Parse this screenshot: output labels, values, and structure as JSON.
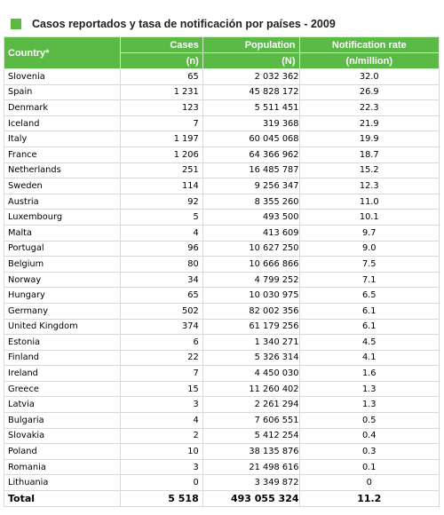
{
  "title": "Casos reportados y tasa de notificación por países - 2009",
  "headers": {
    "country": "Country*",
    "cases": "Cases",
    "cases_unit": "(n)",
    "population": "Population",
    "population_unit": "(N)",
    "rate": "Notification rate",
    "rate_unit": "(n/million)"
  },
  "rows": [
    {
      "country": "Slovenia",
      "cases": "65",
      "population": "2 032 362",
      "rate": "32.0"
    },
    {
      "country": "Spain",
      "cases": "1 231",
      "population": "45 828 172",
      "rate": "26.9"
    },
    {
      "country": "Denmark",
      "cases": "123",
      "population": "5 511 451",
      "rate": "22.3"
    },
    {
      "country": "Iceland",
      "cases": "7",
      "population": "319 368",
      "rate": "21.9"
    },
    {
      "country": "Italy",
      "cases": "1 197",
      "population": "60 045 068",
      "rate": "19.9"
    },
    {
      "country": "France",
      "cases": "1 206",
      "population": "64 366 962",
      "rate": "18.7"
    },
    {
      "country": "Netherlands",
      "cases": "251",
      "population": "16 485 787",
      "rate": "15.2"
    },
    {
      "country": "Sweden",
      "cases": "114",
      "population": "9 256 347",
      "rate": "12.3"
    },
    {
      "country": "Austria",
      "cases": "92",
      "population": "8 355 260",
      "rate": "11.0"
    },
    {
      "country": "Luxembourg",
      "cases": "5",
      "population": "493 500",
      "rate": "10.1"
    },
    {
      "country": "Malta",
      "cases": "4",
      "population": "413 609",
      "rate": "9.7"
    },
    {
      "country": "Portugal",
      "cases": "96",
      "population": "10 627 250",
      "rate": "9.0"
    },
    {
      "country": "Belgium",
      "cases": "80",
      "population": "10 666 866",
      "rate": "7.5"
    },
    {
      "country": "Norway",
      "cases": "34",
      "population": "4 799 252",
      "rate": "7.1"
    },
    {
      "country": "Hungary",
      "cases": "65",
      "population": "10 030 975",
      "rate": "6.5"
    },
    {
      "country": "Germany",
      "cases": "502",
      "population": "82 002 356",
      "rate": "6.1"
    },
    {
      "country": "United Kingdom",
      "cases": "374",
      "population": "61 179 256",
      "rate": "6.1"
    },
    {
      "country": "Estonia",
      "cases": "6",
      "population": "1 340 271",
      "rate": "4.5"
    },
    {
      "country": "Finland",
      "cases": "22",
      "population": "5 326 314",
      "rate": "4.1"
    },
    {
      "country": "Ireland",
      "cases": "7",
      "population": "4 450 030",
      "rate": "1.6"
    },
    {
      "country": "Greece",
      "cases": "15",
      "population": "11 260 402",
      "rate": "1.3"
    },
    {
      "country": "Latvia",
      "cases": "3",
      "population": "2 261 294",
      "rate": "1.3"
    },
    {
      "country": "Bulgaria",
      "cases": "4",
      "population": "7 606 551",
      "rate": "0.5"
    },
    {
      "country": "Slovakia",
      "cases": "2",
      "population": "5 412 254",
      "rate": "0.4"
    },
    {
      "country": "Poland",
      "cases": "10",
      "population": "38 135 876",
      "rate": "0.3"
    },
    {
      "country": "Romania",
      "cases": "3",
      "population": "21 498 616",
      "rate": "0.1"
    },
    {
      "country": "Lithuania",
      "cases": "0",
      "population": "3 349 872",
      "rate": "0"
    }
  ],
  "total": {
    "country": "Total",
    "cases": "5 518",
    "population": "493 055 324",
    "rate": "11.2"
  },
  "colors": {
    "header_green": "#5bb946"
  }
}
